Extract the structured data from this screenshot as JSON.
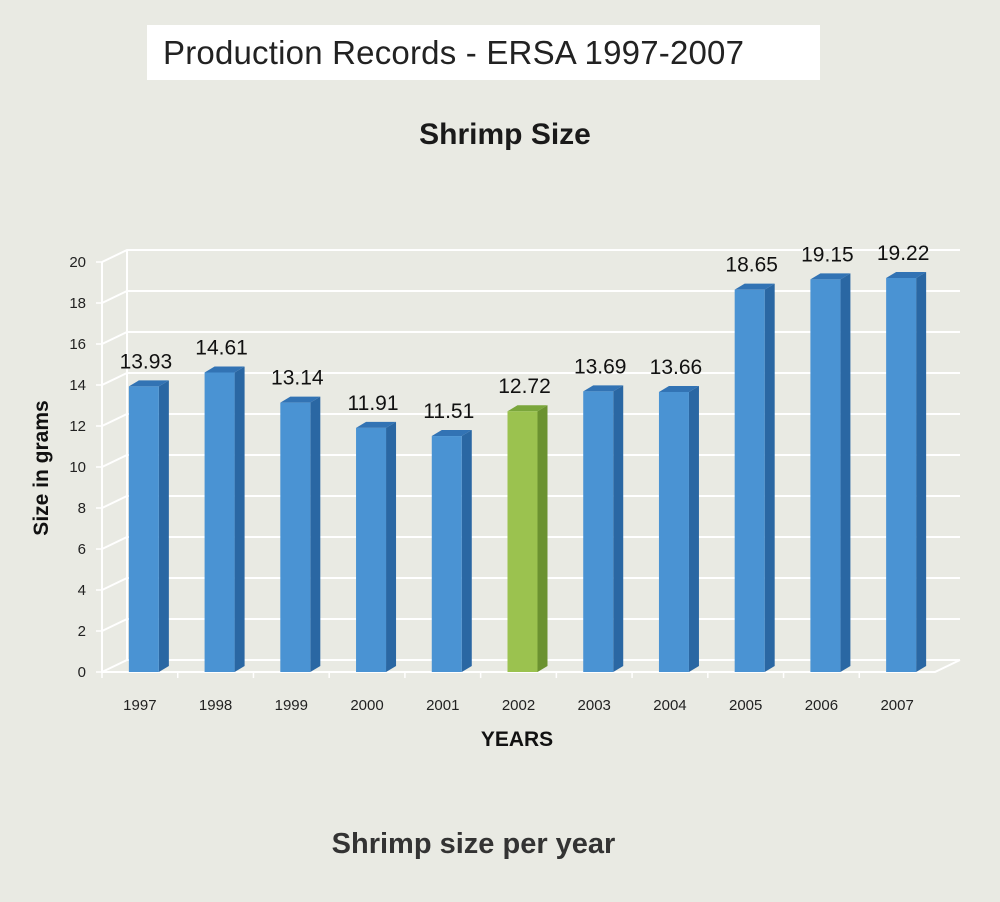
{
  "header": {
    "title": "Production Records - ERSA 1997-2007"
  },
  "caption": "Shrimp size per year",
  "colors": {
    "bar_front": "#4a93d3",
    "bar_side": "#2a67a3",
    "bar_top": "#3273b4",
    "highlight_front": "#9bc24f",
    "highlight_side": "#6b9230",
    "highlight_top": "#7aa63b",
    "grid": "#ffffff",
    "background": "#e9eae3"
  },
  "chart_data": {
    "type": "bar",
    "title": "Shrimp Size",
    "xlabel": "YEARS",
    "ylabel": "Size in grams",
    "categories": [
      "1997",
      "1998",
      "1999",
      "2000",
      "2001",
      "2002",
      "2003",
      "2004",
      "2005",
      "2006",
      "2007"
    ],
    "values": [
      13.93,
      14.61,
      13.14,
      11.91,
      11.51,
      12.72,
      13.69,
      13.66,
      18.65,
      19.15,
      19.22
    ],
    "data_labels": [
      "13.93",
      "14.61",
      "13.14",
      "11.91",
      "11.51",
      "12.72",
      "13.69",
      "13.66",
      "18.65",
      "19.15",
      "19.22"
    ],
    "highlight_category": "2002",
    "ylim": [
      0,
      20
    ],
    "yticks": [
      "0",
      "2",
      "4",
      "6",
      "8",
      "10",
      "12",
      "14",
      "16",
      "18",
      "20"
    ],
    "grid": true,
    "three_d": true
  }
}
